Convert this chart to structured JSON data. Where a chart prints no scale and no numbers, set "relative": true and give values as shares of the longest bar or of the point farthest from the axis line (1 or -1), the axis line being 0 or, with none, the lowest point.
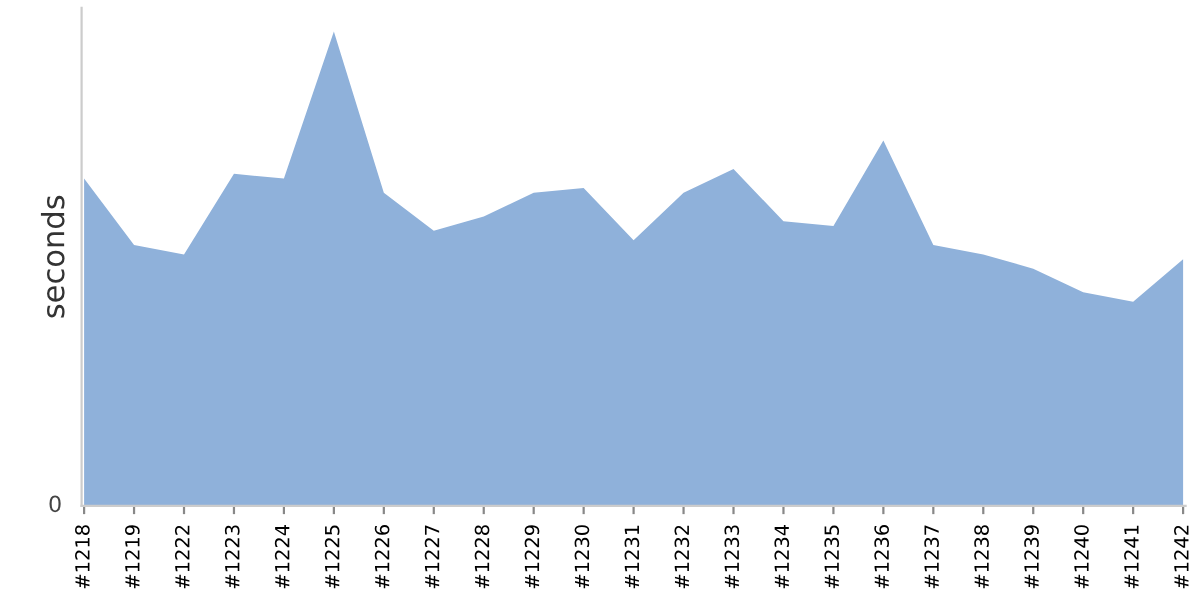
{
  "chart_data": {
    "type": "area",
    "ylabel": "seconds",
    "relative": true,
    "annotations": [
      "0"
    ],
    "categories": [
      "#1218",
      "#1219",
      "#1222",
      "#1223",
      "#1224",
      "#1225",
      "#1226",
      "#1227",
      "#1228",
      "#1229",
      "#1230",
      "#1231",
      "#1232",
      "#1233",
      "#1234",
      "#1235",
      "#1236",
      "#1237",
      "#1238",
      "#1239",
      "#1240",
      "#1241",
      "#1242"
    ],
    "series": [
      {
        "color": "#8fb1da",
        "values": [
          0.69,
          0.55,
          0.53,
          0.7,
          0.69,
          1,
          0.66,
          0.58,
          0.61,
          0.66,
          0.67,
          0.56,
          0.66,
          0.71,
          0.6,
          0.59,
          0.77,
          0.55,
          0.53,
          0.5,
          0.45,
          0.43,
          0.52
        ]
      }
    ],
    "grid": false,
    "legend": false
  }
}
